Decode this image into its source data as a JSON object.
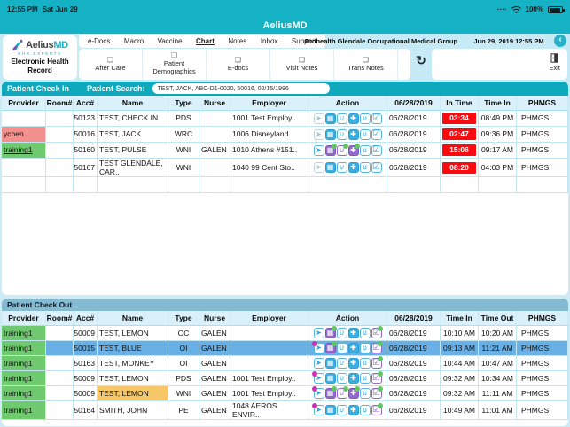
{
  "status_bar": {
    "time": "12:55 PM",
    "date": "Sat Jun 29",
    "cellular": "····",
    "battery": "100%"
  },
  "title_bar": {
    "app_title": "AeliusMD"
  },
  "menu": {
    "tabs": [
      {
        "label": "e-Docs",
        "active": false
      },
      {
        "label": "Macro",
        "active": false
      },
      {
        "label": "Vaccine",
        "active": false
      },
      {
        "label": "Chart",
        "active": true
      },
      {
        "label": "Notes",
        "active": false
      },
      {
        "label": "Inbox",
        "active": false
      },
      {
        "label": "Support",
        "active": false
      }
    ],
    "org_name": "Prohealth Glendale Occupational Medical Group",
    "datetime": "Jun 29, 2019 12:55 PM",
    "back_glyph": "‹"
  },
  "logo": {
    "brand_primary": "Aelius",
    "brand_suffix": "MD",
    "tagline": "EHR EXPERTS",
    "subtitle": "Electronic Health\nRecord"
  },
  "toolbar": {
    "buttons": [
      "After Care",
      "Patient Demographics",
      "E-docs",
      "Visit Notes",
      "Trans Notes"
    ],
    "doc_glyph": "❏",
    "refresh_glyph": "↻",
    "exit_label": "Exit"
  },
  "action_icons": [
    {
      "name": "patient-checkin-icon",
      "glyph": "➤"
    },
    {
      "name": "hospital-icon",
      "glyph": "▦"
    },
    {
      "name": "pharmacy-icon",
      "glyph": "∪"
    },
    {
      "name": "firstaid-icon",
      "glyph": "✚"
    },
    {
      "name": "stethoscope-icon",
      "glyph": "ʊ"
    },
    {
      "name": "complete-checkbox-icon",
      "glyph": "☑"
    }
  ],
  "checkin": {
    "section_title": "Patient Check In",
    "search_label": "Patient Search:",
    "search_value": "TEST, JACK, ABC-D1-0020, 50016, 02/15/1996",
    "columns": [
      "Provider",
      "Room#",
      "Acc#",
      "Name",
      "Type",
      "Nurse",
      "Employer",
      "Action",
      "06/28/2019",
      "In Time",
      "Time In",
      "PHMGS"
    ],
    "rows": [
      {
        "provider": "",
        "provider_bg": null,
        "room": "",
        "acc": "50123",
        "name": "TEST, CHECK IN",
        "type": "PDS",
        "nurse": "",
        "employer": "1001 Test Employ..",
        "icons": [
          {
            "s": "gray"
          },
          {
            "s": "blue-solid"
          },
          {
            "s": "blue"
          },
          {
            "s": "blue-solid"
          },
          {
            "s": "blue"
          },
          {
            "s": "check-blue"
          }
        ],
        "date": "06/28/2019",
        "t1": "03:34",
        "t2": "08:49 PM",
        "phmgs": "PHMGS",
        "selected": false
      },
      {
        "provider": "ychen",
        "provider_bg": "pink",
        "room": "",
        "acc": "50016",
        "name": "TEST, JACK",
        "type": "WRC",
        "nurse": "",
        "employer": "1006 Disneyland",
        "icons": [
          {
            "s": "gray"
          },
          {
            "s": "blue-solid"
          },
          {
            "s": "blue"
          },
          {
            "s": "blue-solid"
          },
          {
            "s": "blue"
          },
          {
            "s": "check-blue"
          }
        ],
        "date": "06/28/2019",
        "t1": "02:47",
        "t2": "09:36 PM",
        "phmgs": "PHMGS",
        "selected": false
      },
      {
        "provider": "training1",
        "provider_bg": "green",
        "provider_underline": true,
        "room": "",
        "acc": "50160",
        "name": "TEST, PULSE",
        "type": "WNI",
        "nurse": "GALEN",
        "employer": "1010 Athens #151..",
        "icons": [
          {
            "s": "blue"
          },
          {
            "s": "purple-solid",
            "d": "g"
          },
          {
            "s": "purple",
            "d": "g"
          },
          {
            "s": "purple-solid",
            "d": "g"
          },
          {
            "s": "blue"
          },
          {
            "s": "check-blue"
          }
        ],
        "date": "06/28/2019",
        "t1": "15:06",
        "t2": "09:17 AM",
        "phmgs": "PHMGS",
        "selected": false
      },
      {
        "provider": "",
        "provider_bg": null,
        "room": "",
        "acc": "50167",
        "name": "TEST GLENDALE,\nCAR..",
        "type": "WNI",
        "nurse": "",
        "employer": "1040 99 Cent Sto..",
        "icons": [
          {
            "s": "gray"
          },
          {
            "s": "blue-solid"
          },
          {
            "s": "blue"
          },
          {
            "s": "blue-solid"
          },
          {
            "s": "blue"
          },
          {
            "s": "check-blue"
          }
        ],
        "date": "06/28/2019",
        "t1": "08:20",
        "t2": "04:03 PM",
        "phmgs": "PHMGS",
        "selected": false
      }
    ]
  },
  "checkout": {
    "section_title": "Patient Check Out",
    "columns": [
      "Provider",
      "Room#",
      "Acc#",
      "Name",
      "Type",
      "Nurse",
      "Employer",
      "Action",
      "06/28/2019",
      "Time In",
      "Time Out",
      "PHMGS"
    ],
    "rows": [
      {
        "provider": "training1",
        "provider_bg": "green",
        "room": "",
        "acc": "50009",
        "name": "TEST, LEMON",
        "type": "OC",
        "nurse": "GALEN",
        "employer": "",
        "icons": [
          {
            "s": "blue"
          },
          {
            "s": "purple-solid",
            "d": "g"
          },
          {
            "s": "blue"
          },
          {
            "s": "blue-solid"
          },
          {
            "s": "blue"
          },
          {
            "s": "check-purple",
            "d": "g"
          }
        ],
        "date": "06/28/2019",
        "t1": "10:10 AM",
        "t2": "10:20 AM",
        "phmgs": "PHMGS",
        "selected": false
      },
      {
        "provider": "training1",
        "provider_bg": "green",
        "room": "",
        "acc": "50015",
        "name": "TEST, BLUE",
        "type": "OI",
        "nurse": "GALEN",
        "employer": "",
        "icons": [
          {
            "s": "blue",
            "d": "m"
          },
          {
            "s": "purple-solid",
            "d": "g"
          },
          {
            "s": "blue"
          },
          {
            "s": "blue-solid"
          },
          {
            "s": "blue"
          },
          {
            "s": "check-purple",
            "d": "g"
          }
        ],
        "date": "06/28/2019",
        "t1": "09:13 AM",
        "t2": "11:21 AM",
        "phmgs": "PHMGS",
        "selected": true
      },
      {
        "provider": "training1",
        "provider_bg": "green",
        "room": "",
        "acc": "50163",
        "name": "TEST, MONKEY",
        "type": "OI",
        "nurse": "GALEN",
        "employer": "",
        "icons": [
          {
            "s": "blue"
          },
          {
            "s": "blue-solid"
          },
          {
            "s": "blue"
          },
          {
            "s": "blue-solid"
          },
          {
            "s": "blue"
          },
          {
            "s": "check-purple",
            "d": "g"
          }
        ],
        "date": "06/28/2019",
        "t1": "10:44 AM",
        "t2": "10:47 AM",
        "phmgs": "PHMGS",
        "selected": false
      },
      {
        "provider": "training1",
        "provider_bg": "green",
        "room": "",
        "acc": "50009",
        "name": "TEST, LEMON",
        "type": "PDS",
        "nurse": "GALEN",
        "employer": "1001 Test Employ..",
        "icons": [
          {
            "s": "blue",
            "d": "m"
          },
          {
            "s": "blue-solid"
          },
          {
            "s": "blue"
          },
          {
            "s": "blue-solid"
          },
          {
            "s": "blue"
          },
          {
            "s": "check-purple",
            "d": "g"
          }
        ],
        "date": "06/28/2019",
        "t1": "09:32 AM",
        "t2": "10:34 AM",
        "phmgs": "PHMGS",
        "selected": false
      },
      {
        "provider": "training1",
        "provider_bg": "green",
        "room": "",
        "acc": "50009",
        "name": "TEST, LEMON",
        "name_bg": "orange",
        "type": "WNI",
        "nurse": "GALEN",
        "employer": "1001 Test Employ..",
        "icons": [
          {
            "s": "blue",
            "d": "m"
          },
          {
            "s": "purple-solid",
            "d": "g"
          },
          {
            "s": "purple",
            "d": "g"
          },
          {
            "s": "purple-solid",
            "d": "g"
          },
          {
            "s": "blue"
          },
          {
            "s": "check-purple",
            "d": "g"
          }
        ],
        "date": "06/28/2019",
        "t1": "09:32 AM",
        "t2": "11:11 AM",
        "phmgs": "PHMGS",
        "selected": false
      },
      {
        "provider": "training1",
        "provider_bg": "green",
        "room": "",
        "acc": "50164",
        "name": "SMITH, JOHN",
        "type": "PE",
        "nurse": "GALEN",
        "employer": "1048 AEROS\nENVIR..",
        "icons": [
          {
            "s": "blue",
            "d": "m"
          },
          {
            "s": "blue-solid"
          },
          {
            "s": "blue"
          },
          {
            "s": "blue-solid"
          },
          {
            "s": "blue"
          },
          {
            "s": "check-purple",
            "d": "g"
          }
        ],
        "date": "06/28/2019",
        "t1": "10:49 AM",
        "t2": "11:01 AM",
        "phmgs": "PHMGS",
        "selected": false
      }
    ]
  },
  "colors": {
    "teal": "#14b2c4",
    "section_teal": "#0fa9bd",
    "checkout_bar": "#85bad3",
    "header_bg": "#daf1fb",
    "grid_line": "#bfe4f2",
    "badge_red": "#fb0a10",
    "provider_green": "#6fc96e",
    "provider_pink": "#f2908d",
    "selected_blue": "#68b0e6",
    "name_orange": "#f6c766"
  }
}
